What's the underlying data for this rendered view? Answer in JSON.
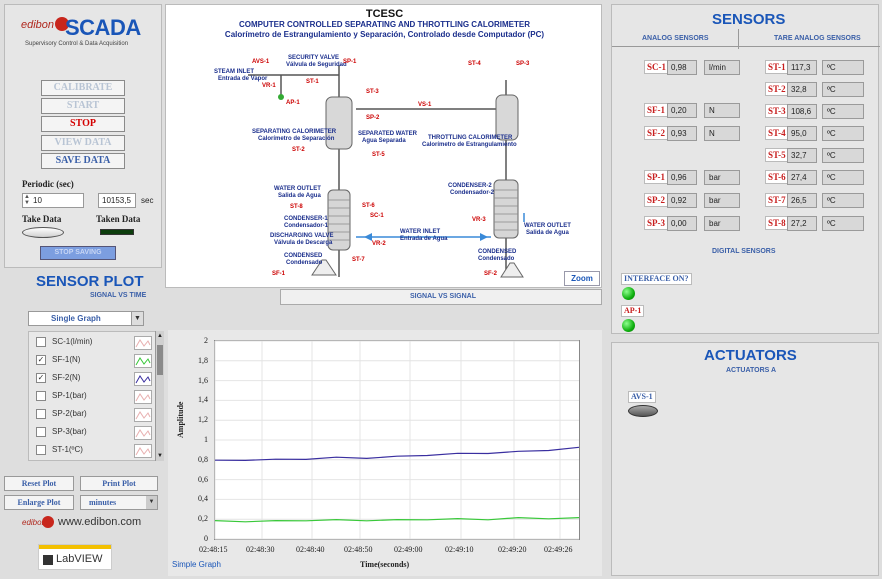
{
  "brand": {
    "logo_word": "edibon",
    "title": "SCADA",
    "subtitle": "Supervisory Control & Data Acquisition",
    "url": "www.edibon.com",
    "labview": "LabVIEW"
  },
  "controls": {
    "calibrate": "CALIBRATE",
    "start": "START",
    "stop": "STOP",
    "view_data": "VIEW DATA",
    "save_data": "SAVE DATA",
    "periodic_label": "Periodic (sec)",
    "periodic_value": "10",
    "elapsed_value": "10153,5",
    "elapsed_unit": "sec",
    "take_data": "Take Data",
    "taken_data": "Taken Data",
    "stop_saving": "STOP SAVING"
  },
  "diagram": {
    "header": "TCESC",
    "title_en": "COMPUTER CONTROLLED SEPARATING AND THROTTLING CALORIMETER",
    "title_es": "Calorímetro de Estrangulamiento y Separación, Controlado desde Computador (PC)",
    "labels": {
      "avs1": "AVS-1",
      "security_valve": "SECURITY VALVE",
      "security_valve_es": "Válvula de Seguridad",
      "sp1": "SP-1",
      "steam_inlet": "STEAM INLET",
      "steam_inlet_es": "Entrada de Vapor",
      "vr1": "VR-1",
      "st1": "ST-1",
      "ap1": "AP-1",
      "st3": "ST-3",
      "sp2": "SP-2",
      "vs1": "VS-1",
      "st4": "ST-4",
      "sp3": "SP-3",
      "sep_cal": "SEPARATING CALORIMETER",
      "sep_cal_es": "Calorímetro de Separación",
      "sep_water": "SEPARATED WATER",
      "sep_water_es": "Agua Separada",
      "st2": "ST-2",
      "st5": "ST-5",
      "thr_cal": "THROTTLING CALORIMETER",
      "thr_cal_es": "Calorímetro de Estrangulamiento",
      "water_outlet": "WATER OUTLET",
      "water_outlet_es": "Salida de Agua",
      "st8": "ST-8",
      "st6": "ST-6",
      "condenser1": "CONDENSER-1",
      "condenser1_es": "Condensador-1",
      "sc1": "SC-1",
      "discharging_valve": "DISCHARGING VALVE",
      "discharging_valve_es": "Válvula de Descarga",
      "vr2": "VR-2",
      "condensed": "CONDENSED",
      "condensed_es": "Condensado",
      "st7": "ST-7",
      "sf1": "SF-1",
      "condenser2": "CONDENSER-2",
      "condenser2_es": "Condensador-2",
      "vr3": "VR-3",
      "water_inlet": "WATER INLET",
      "water_inlet_es": "Entrada de Agua",
      "water_outlet2": "WATER OUTLET",
      "water_outlet2_es": "Salida de Agua",
      "condensed2": "CONDENSED",
      "condensed2_es": "Condensado",
      "sf2": "SF-2"
    },
    "zoom": "Zoom"
  },
  "plot": {
    "heading": "SENSOR PLOT",
    "tab1": "SIGNAL VS TIME",
    "tab2": "SIGNAL VS SIGNAL",
    "graph_mode": "Single Graph",
    "signals": [
      {
        "name": "SC-1(l/min)",
        "checked": false
      },
      {
        "name": "SF-1(N)",
        "checked": true
      },
      {
        "name": "SF-2(N)",
        "checked": true
      },
      {
        "name": "SP-1(bar)",
        "checked": false
      },
      {
        "name": "SP-2(bar)",
        "checked": false
      },
      {
        "name": "SP-3(bar)",
        "checked": false
      },
      {
        "name": "ST-1(ºC)",
        "checked": false
      }
    ],
    "reset": "Reset Plot",
    "print": "Print Plot",
    "enlarge": "Enlarge Plot",
    "time_unit": "minutes",
    "footer": "Simple Graph"
  },
  "chart_data": {
    "type": "line",
    "xlabel": "Time(seconds)",
    "ylabel": "Amplitude",
    "x_ticks": [
      "02:48:15",
      "02:48:30",
      "02:48:40",
      "02:48:50",
      "02:49:00",
      "02:49:10",
      "02:49:20",
      "02:49:26"
    ],
    "ylim": [
      0,
      2
    ],
    "y_ticks": [
      "0",
      "0,2",
      "0,4",
      "0,6",
      "0,8",
      "1",
      "1,2",
      "1,4",
      "1,6",
      "1,8",
      "2"
    ],
    "series": [
      {
        "color": "#3a2fa0",
        "values": [
          0.79,
          0.8,
          0.8,
          0.81,
          0.82,
          0.82,
          0.83,
          0.85,
          0.86,
          0.87,
          0.88,
          0.9,
          0.92
        ]
      },
      {
        "color": "#39c83a",
        "values": [
          0.18,
          0.18,
          0.18,
          0.19,
          0.19,
          0.19,
          0.19,
          0.2,
          0.2,
          0.2,
          0.21,
          0.21,
          0.21
        ]
      }
    ]
  },
  "sensors": {
    "heading": "SENSORS",
    "analog": "ANALOG SENSORS",
    "tare": "TARE ANALOG SENSORS",
    "left": [
      {
        "id": "SC-1",
        "value": "0,98",
        "unit": "l/min"
      },
      {
        "id": "SF-1",
        "value": "0,20",
        "unit": "N"
      },
      {
        "id": "SF-2",
        "value": "0,93",
        "unit": "N"
      },
      {
        "id": "SP-1",
        "value": "0,96",
        "unit": "bar"
      },
      {
        "id": "SP-2",
        "value": "0,92",
        "unit": "bar"
      },
      {
        "id": "SP-3",
        "value": "0,00",
        "unit": "bar"
      }
    ],
    "right": [
      {
        "id": "ST-1",
        "value": "117,3",
        "unit": "ºC"
      },
      {
        "id": "ST-2",
        "value": "32,8",
        "unit": "ºC"
      },
      {
        "id": "ST-3",
        "value": "108,6",
        "unit": "ºC"
      },
      {
        "id": "ST-4",
        "value": "95,0",
        "unit": "ºC"
      },
      {
        "id": "ST-5",
        "value": "32,7",
        "unit": "ºC"
      },
      {
        "id": "ST-6",
        "value": "27,4",
        "unit": "ºC"
      },
      {
        "id": "ST-7",
        "value": "26,5",
        "unit": "ºC"
      },
      {
        "id": "ST-8",
        "value": "27,2",
        "unit": "ºC"
      }
    ],
    "digital": "DIGITAL SENSORS",
    "interface": "INTERFACE ON?",
    "ap1": "AP-1"
  },
  "actuators": {
    "heading": "ACTUATORS",
    "sub": "ACTUATORS A",
    "avs1": "AVS-1"
  }
}
